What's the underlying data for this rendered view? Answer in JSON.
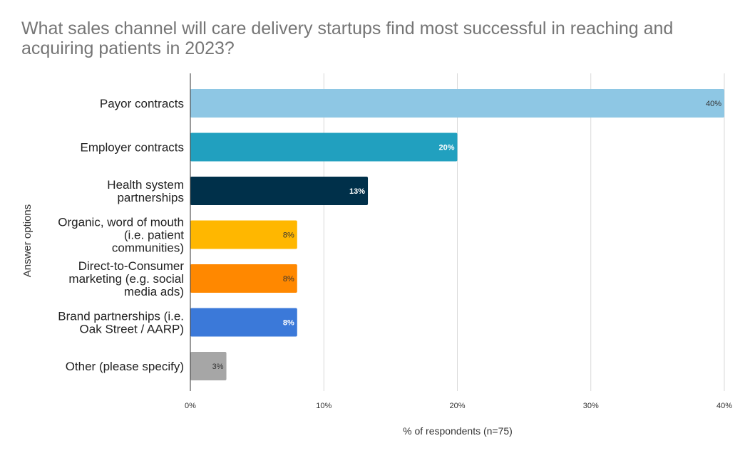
{
  "chart_data": {
    "type": "bar",
    "orientation": "horizontal",
    "title": "What sales channel will care delivery startups find most successful in reaching and acquiring patients in 2023?",
    "xlabel": "% of respondents (n=75)",
    "ylabel": "Answer options",
    "xlim": [
      0,
      40
    ],
    "x_ticks": [
      {
        "value": 0,
        "label": "0%"
      },
      {
        "value": 10,
        "label": "10%"
      },
      {
        "value": 20,
        "label": "20%"
      },
      {
        "value": 30,
        "label": "30%"
      },
      {
        "value": 40,
        "label": "40%"
      }
    ],
    "grid": "vertical",
    "legend": "none",
    "categories": [
      [
        "Payor contracts"
      ],
      [
        "Employer contracts"
      ],
      [
        "Health system",
        "partnerships"
      ],
      [
        "Organic, word of mouth",
        "(i.e. patient",
        "communities)"
      ],
      [
        "Direct-to-Consumer",
        "marketing (e.g. social",
        "media ads)"
      ],
      [
        "Brand partnerships (i.e.",
        "Oak Street / AARP)"
      ],
      [
        "Other (please specify)"
      ]
    ],
    "values": [
      40,
      20,
      13.3,
      8,
      8,
      8,
      2.7
    ],
    "data_labels": [
      "40%",
      "20%",
      "13%",
      "8%",
      "8%",
      "8%",
      "3%"
    ],
    "colors": [
      "#8ec7e4",
      "#21a0bf",
      "#00304a",
      "#ffb700",
      "#ff8800",
      "#3b79d9",
      "#a6a6a6"
    ],
    "label_colors": [
      "#333333",
      "#ffffff",
      "#ffffff",
      "#333333",
      "#333333",
      "#ffffff",
      "#333333"
    ]
  }
}
